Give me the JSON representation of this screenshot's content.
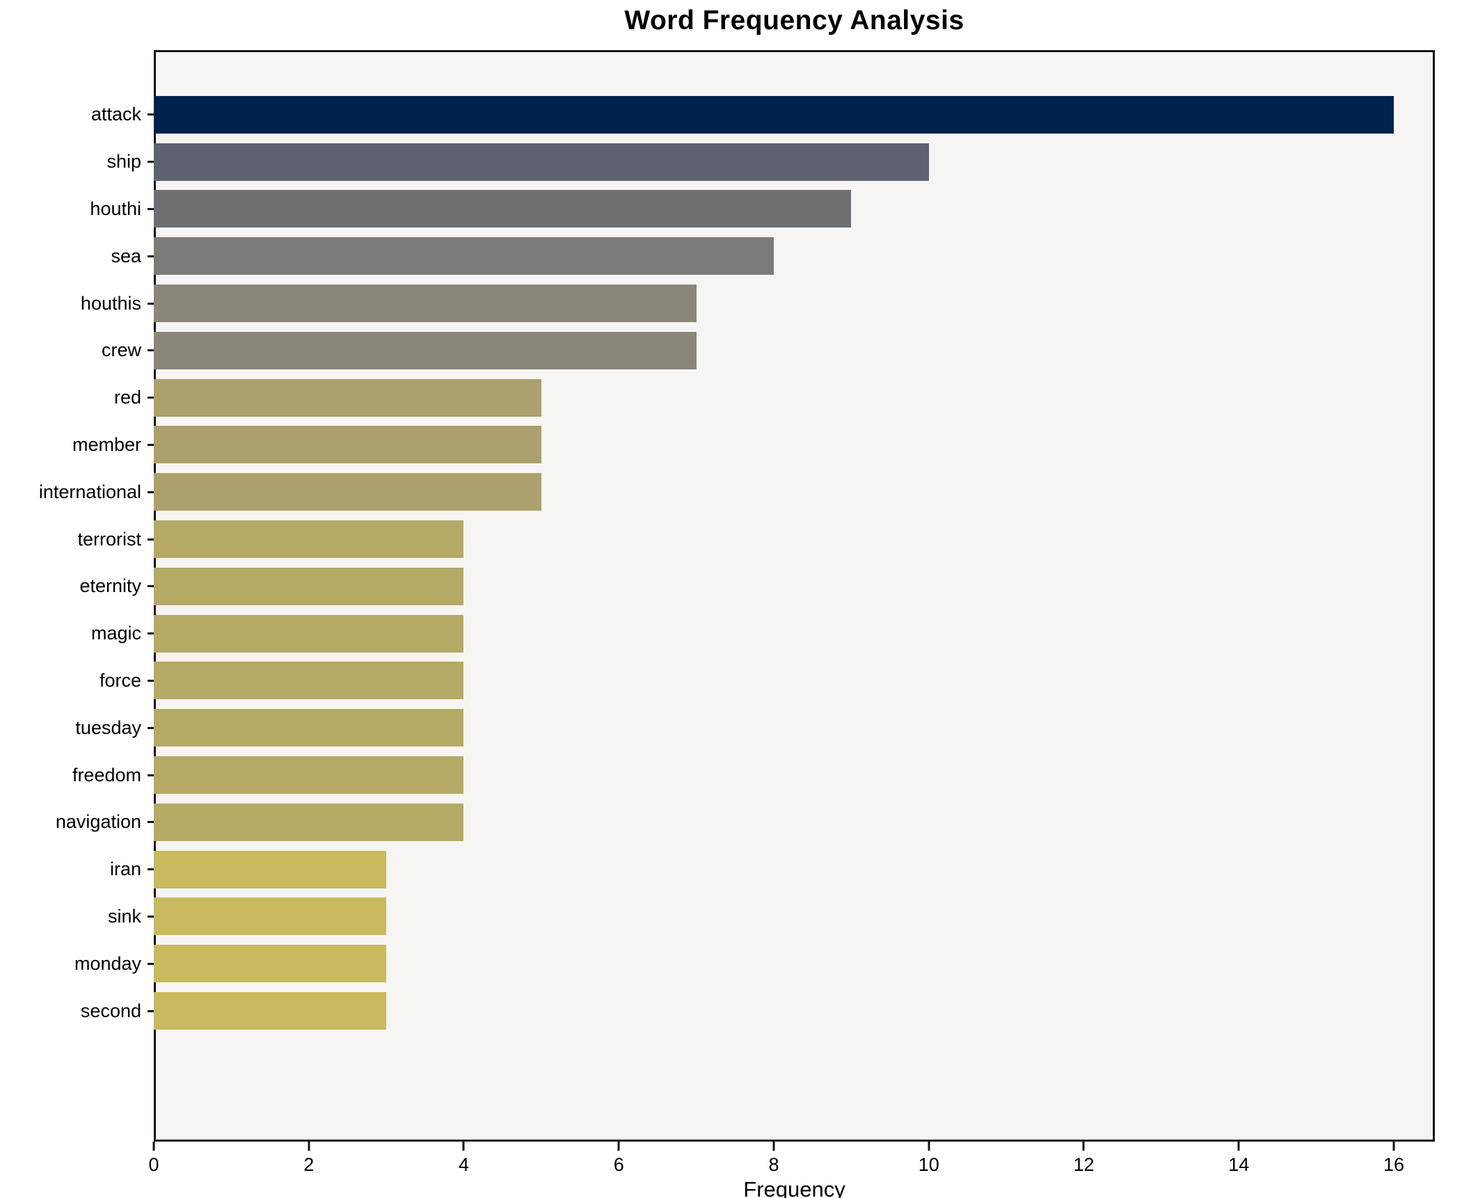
{
  "figure": {
    "title": "Word Frequency Analysis",
    "xlabel": "Frequency"
  },
  "chart_data": {
    "type": "bar",
    "orientation": "horizontal",
    "title": "Word Frequency Analysis",
    "xlabel": "Frequency",
    "ylabel": "",
    "categories": [
      "attack",
      "ship",
      "houthi",
      "sea",
      "houthis",
      "crew",
      "red",
      "member",
      "international",
      "terrorist",
      "eternity",
      "magic",
      "force",
      "tuesday",
      "freedom",
      "navigation",
      "iran",
      "sink",
      "monday",
      "second"
    ],
    "values": [
      16,
      10,
      9,
      8,
      7,
      7,
      5,
      5,
      5,
      4,
      4,
      4,
      4,
      4,
      4,
      4,
      3,
      3,
      3,
      3
    ],
    "colors": [
      "#00224e",
      "#5d6170",
      "#6c6e71",
      "#7c7b77",
      "#8a867a",
      "#8a867a",
      "#aca06c",
      "#aca06c",
      "#aca06c",
      "#b5a966",
      "#b5a966",
      "#b5a966",
      "#b5a966",
      "#b5a966",
      "#b5a966",
      "#b5a966",
      "#c9b95f",
      "#c9b95f",
      "#c9b95f",
      "#c9b95f"
    ],
    "xlim": [
      0,
      16.53
    ],
    "xticks": [
      0,
      2,
      4,
      6,
      8,
      10,
      12,
      14,
      16
    ],
    "grid": false,
    "legend": false,
    "plot_background": "#f6f5f3",
    "colormap": "cividis"
  }
}
